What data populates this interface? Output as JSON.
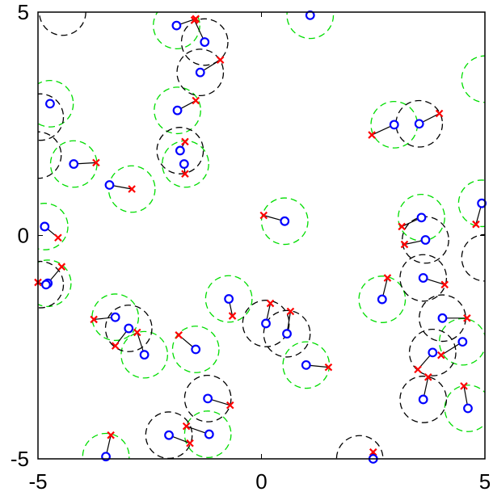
{
  "chart_data": {
    "type": "scatter",
    "title": "",
    "xlabel": "",
    "ylabel": "",
    "xlim": [
      -5,
      5
    ],
    "ylim": [
      -5,
      5
    ],
    "x_ticks": [
      -5,
      0,
      5
    ],
    "y_ticks": [
      -5,
      0,
      5
    ],
    "x_tick_labels": [
      "-5",
      "0",
      "5"
    ],
    "y_tick_labels": [
      "-5",
      "0",
      "5"
    ],
    "grid": false,
    "colors": {
      "circle_marker": "#0000ff",
      "x_marker": "#ff0000",
      "green_dashed_ring": "#00dd00",
      "black_dashed_ring": "#000000",
      "link_line": "#000000"
    },
    "pairs": [
      {
        "o": [
          -1.9,
          4.7
        ],
        "x": [
          -1.47,
          4.85
        ]
      },
      {
        "o": [
          -1.27,
          4.33
        ],
        "x": [
          -1.5,
          4.82
        ]
      },
      {
        "o": [
          -1.37,
          3.65
        ],
        "x": [
          -0.92,
          3.93
        ]
      },
      {
        "o": [
          -1.88,
          2.8
        ],
        "x": [
          -1.47,
          3.02
        ]
      },
      {
        "o": [
          1.09,
          4.93
        ],
        "x": [
          1.09,
          4.93
        ]
      },
      {
        "o": [
          -4.73,
          2.95
        ],
        "x": [
          -4.73,
          2.95
        ]
      },
      {
        "o": [
          -4.2,
          1.6
        ],
        "x": [
          -3.7,
          1.63
        ]
      },
      {
        "o": [
          -3.4,
          1.13
        ],
        "x": [
          -2.9,
          1.04
        ]
      },
      {
        "o": [
          -1.82,
          1.9
        ],
        "x": [
          -1.71,
          2.1
        ]
      },
      {
        "o": [
          -1.73,
          1.6
        ],
        "x": [
          -1.71,
          1.38
        ]
      },
      {
        "o": [
          2.97,
          2.48
        ],
        "x": [
          2.47,
          2.25
        ]
      },
      {
        "o": [
          3.53,
          2.5
        ],
        "x": [
          3.98,
          2.73
        ]
      },
      {
        "o": [
          0.52,
          0.32
        ],
        "x": [
          0.05,
          0.45
        ]
      },
      {
        "o": [
          -4.85,
          0.2
        ],
        "x": [
          -4.55,
          -0.05
        ]
      },
      {
        "o": [
          3.58,
          0.4
        ],
        "x": [
          3.14,
          0.2
        ]
      },
      {
        "o": [
          3.67,
          -0.1
        ],
        "x": [
          3.2,
          -0.2
        ]
      },
      {
        "o": [
          4.93,
          0.72
        ],
        "x": [
          4.8,
          0.25
        ]
      },
      {
        "o": [
          -4.78,
          -1.07
        ],
        "x": [
          -4.47,
          -0.7
        ]
      },
      {
        "o": [
          -4.82,
          -1.1
        ],
        "x": [
          -5.0,
          -1.05
        ]
      },
      {
        "o": [
          3.62,
          -0.95
        ],
        "x": [
          4.1,
          -1.1
        ]
      },
      {
        "o": [
          2.7,
          -1.43
        ],
        "x": [
          2.82,
          -0.95
        ]
      },
      {
        "o": [
          -0.73,
          -1.42
        ],
        "x": [
          -0.65,
          -1.8
        ]
      },
      {
        "o": [
          0.1,
          -1.97
        ],
        "x": [
          0.2,
          -1.52
        ]
      },
      {
        "o": [
          0.57,
          -2.2
        ],
        "x": [
          0.65,
          -1.7
        ]
      },
      {
        "o": [
          -3.27,
          -1.83
        ],
        "x": [
          -3.75,
          -1.88
        ]
      },
      {
        "o": [
          -2.97,
          -2.08
        ],
        "x": [
          -3.27,
          -2.47
        ]
      },
      {
        "o": [
          -2.62,
          -2.67
        ],
        "x": [
          -2.78,
          -2.17
        ]
      },
      {
        "o": [
          -1.47,
          -2.55
        ],
        "x": [
          -1.85,
          -2.23
        ]
      },
      {
        "o": [
          4.05,
          -1.85
        ],
        "x": [
          4.6,
          -1.85
        ]
      },
      {
        "o": [
          4.5,
          -2.38
        ],
        "x": [
          4.02,
          -2.68
        ]
      },
      {
        "o": [
          3.83,
          -2.62
        ],
        "x": [
          3.5,
          -3.0
        ]
      },
      {
        "o": [
          1.0,
          -2.9
        ],
        "x": [
          1.5,
          -2.95
        ]
      },
      {
        "o": [
          3.62,
          -3.67
        ],
        "x": [
          3.73,
          -3.17
        ]
      },
      {
        "o": [
          4.62,
          -3.87
        ],
        "x": [
          4.53,
          -3.37
        ]
      },
      {
        "o": [
          -1.2,
          -3.65
        ],
        "x": [
          -0.7,
          -3.8
        ]
      },
      {
        "o": [
          -2.07,
          -4.47
        ],
        "x": [
          -1.6,
          -4.65
        ]
      },
      {
        "o": [
          -1.17,
          -4.45
        ],
        "x": [
          -1.68,
          -4.27
        ]
      },
      {
        "o": [
          -3.48,
          -4.95
        ],
        "x": [
          -3.37,
          -4.47
        ]
      },
      {
        "o": [
          2.5,
          -5.0
        ],
        "x": [
          2.5,
          -4.85
        ]
      }
    ],
    "green_rings": [
      [
        -1.9,
        4.7
      ],
      [
        1.09,
        4.93
      ],
      [
        -1.88,
        2.8
      ],
      [
        -4.73,
        2.95
      ],
      [
        -4.2,
        1.6
      ],
      [
        -2.9,
        1.04
      ],
      [
        -1.7,
        1.6
      ],
      [
        2.97,
        2.48
      ],
      [
        0.52,
        0.32
      ],
      [
        -4.85,
        0.2
      ],
      [
        3.58,
        0.4
      ],
      [
        4.93,
        0.72
      ],
      [
        -4.78,
        -1.07
      ],
      [
        2.7,
        -1.43
      ],
      [
        -0.73,
        -1.42
      ],
      [
        -3.27,
        -1.83
      ],
      [
        -2.62,
        -2.67
      ],
      [
        -1.47,
        -2.55
      ],
      [
        4.5,
        -2.38
      ],
      [
        1.0,
        -2.9
      ],
      [
        4.62,
        -3.87
      ],
      [
        -1.2,
        -4.45
      ],
      [
        -3.48,
        -4.95
      ],
      [
        5.0,
        3.5
      ]
    ],
    "black_rings": [
      [
        -1.27,
        4.33
      ],
      [
        -1.37,
        3.65
      ],
      [
        -4.95,
        2.65
      ],
      [
        -5.0,
        1.8
      ],
      [
        -1.82,
        1.9
      ],
      [
        3.53,
        2.5
      ],
      [
        3.67,
        -0.1
      ],
      [
        5.0,
        -0.5
      ],
      [
        3.62,
        -0.95
      ],
      [
        -4.95,
        -1.1
      ],
      [
        0.1,
        -1.97
      ],
      [
        0.57,
        -2.2
      ],
      [
        -2.97,
        -2.08
      ],
      [
        4.05,
        -1.85
      ],
      [
        3.83,
        -2.62
      ],
      [
        3.62,
        -3.67
      ],
      [
        -1.2,
        -3.65
      ],
      [
        -2.07,
        -4.47
      ],
      [
        2.2,
        -5.0
      ],
      [
        -4.45,
        5.0
      ]
    ]
  }
}
